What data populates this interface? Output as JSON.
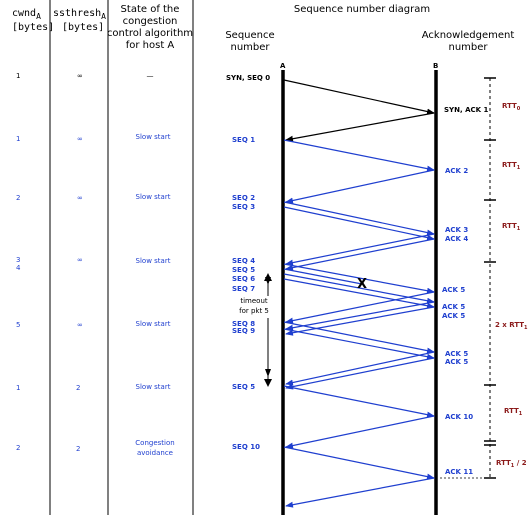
{
  "columns": {
    "cwnd": {
      "main": "cwnd",
      "sub": "A",
      "unit": "[bytes]"
    },
    "ssthresh": {
      "main": "ssthresh",
      "sub": "A",
      "unit": "[bytes]"
    },
    "state": [
      "State of the",
      "congestion",
      "control algorithm",
      "for host A"
    ],
    "diagram_title": "Sequence number diagram",
    "seq_header": [
      "Sequence",
      "number"
    ],
    "ack_header": [
      "Acknowledgement",
      "number"
    ]
  },
  "hosts": {
    "a": "A",
    "b": "B"
  },
  "rows": [
    {
      "cwnd": "1",
      "ssthresh": "∞",
      "state": [
        "—"
      ]
    },
    {
      "cwnd": "1",
      "ssthresh": "∞",
      "state": [
        "Slow start"
      ]
    },
    {
      "cwnd": "2",
      "ssthresh": "∞",
      "state": [
        "Slow start"
      ]
    },
    {
      "cwnd": "3",
      "cwnd2": "4",
      "ssthresh": "∞",
      "state": [
        "Slow start"
      ]
    },
    {
      "cwnd": "5",
      "ssthresh": "∞",
      "state": [
        "Slow start"
      ]
    },
    {
      "cwnd": "1",
      "ssthresh": "2",
      "state": [
        "Slow start"
      ]
    },
    {
      "cwnd": "2",
      "ssthresh": "2",
      "state": [
        "Congestion",
        "avoidance"
      ]
    }
  ],
  "seq_labels": [
    "SYN, SEQ 0",
    "SEQ 1",
    "SEQ 2",
    "SEQ 3",
    "SEQ 4",
    "SEQ 5",
    "SEQ 6",
    "SEQ 7",
    "SEQ 8",
    "SEQ 9",
    "SEQ 5",
    "SEQ 10"
  ],
  "ack_labels": [
    "SYN, ACK 1",
    "ACK 2",
    "ACK 3",
    "ACK 4",
    "ACK 5",
    "ACK 5",
    "ACK 5",
    "ACK 5",
    "ACK 5",
    "ACK 10",
    "ACK 11"
  ],
  "loss_marker": "X",
  "timeout": [
    "timeout",
    "for pkt 5"
  ],
  "rtt": {
    "rtt0": "RTT",
    "rtt0_sub": "0",
    "rtt1": "RTT",
    "rtt1_sub": "1",
    "rtt2x": "2 x RTT",
    "rtt2x_sub": "1",
    "half": "RTT",
    "half_sub": "1",
    "half_suffix": " / 2"
  },
  "colors": {
    "blue": "#1f3fcf",
    "black": "#000000",
    "rtt": "#8b1a1a"
  }
}
